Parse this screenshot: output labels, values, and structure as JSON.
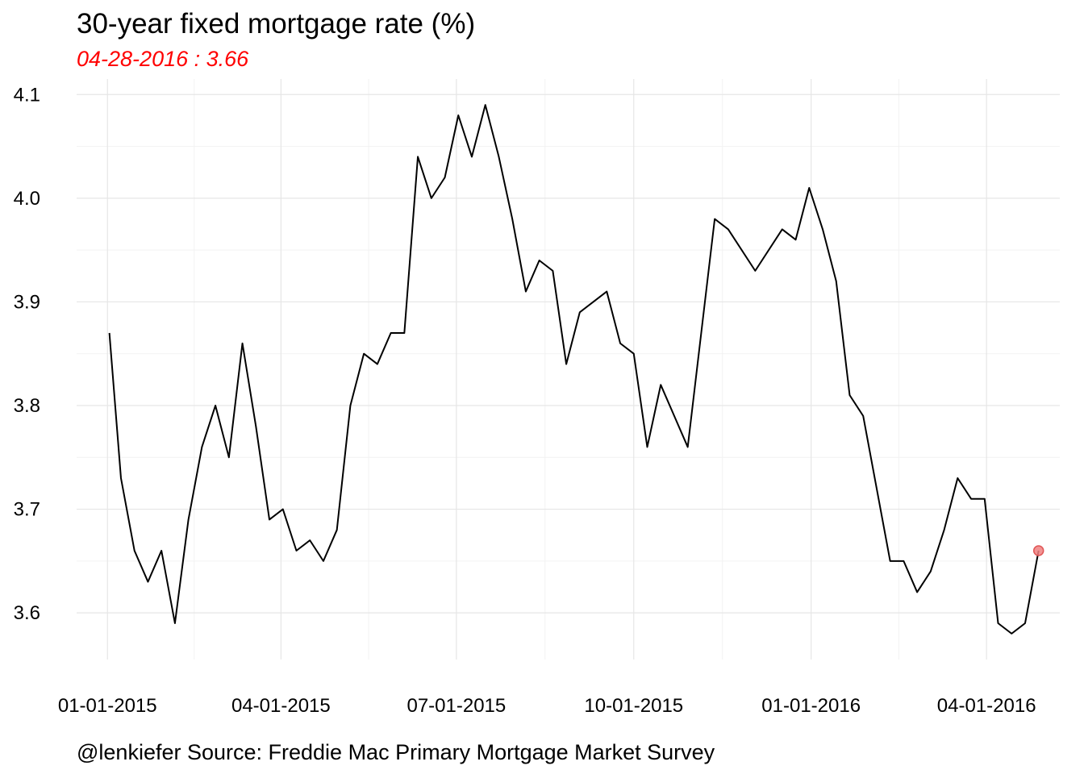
{
  "chart_data": {
    "type": "line",
    "title": "30-year fixed mortgage rate (%)",
    "subtitle": "04-28-2016 : 3.66",
    "caption": "@lenkiefer Source: Freddie Mac Primary Mortgage Market Survey",
    "xlabel": "",
    "ylabel": "",
    "x_ticks": [
      {
        "date": "2015-01-01",
        "label": "01-01-2015"
      },
      {
        "date": "2015-04-01",
        "label": "04-01-2015"
      },
      {
        "date": "2015-07-01",
        "label": "07-01-2015"
      },
      {
        "date": "2015-10-01",
        "label": "10-01-2015"
      },
      {
        "date": "2016-01-01",
        "label": "01-01-2016"
      },
      {
        "date": "2016-04-01",
        "label": "04-01-2016"
      }
    ],
    "y_ticks": [
      3.6,
      3.7,
      3.8,
      3.9,
      4.0,
      4.1
    ],
    "y_tick_labels": [
      "3.6",
      "3.7",
      "3.8",
      "3.9",
      "4.0",
      "4.1"
    ],
    "ylim": [
      3.555,
      4.115
    ],
    "xlim": [
      "2014-12-16",
      "2016-05-09"
    ],
    "grid": true,
    "series": [
      {
        "color": "#000000",
        "points": [
          [
            "2015-01-02",
            3.87
          ],
          [
            "2015-01-08",
            3.73
          ],
          [
            "2015-01-15",
            3.66
          ],
          [
            "2015-01-22",
            3.63
          ],
          [
            "2015-01-29",
            3.66
          ],
          [
            "2015-02-05",
            3.59
          ],
          [
            "2015-02-12",
            3.69
          ],
          [
            "2015-02-19",
            3.76
          ],
          [
            "2015-02-26",
            3.8
          ],
          [
            "2015-03-05",
            3.75
          ],
          [
            "2015-03-12",
            3.86
          ],
          [
            "2015-03-19",
            3.78
          ],
          [
            "2015-03-26",
            3.69
          ],
          [
            "2015-04-02",
            3.7
          ],
          [
            "2015-04-09",
            3.66
          ],
          [
            "2015-04-16",
            3.67
          ],
          [
            "2015-04-23",
            3.65
          ],
          [
            "2015-04-30",
            3.68
          ],
          [
            "2015-05-07",
            3.8
          ],
          [
            "2015-05-14",
            3.85
          ],
          [
            "2015-05-21",
            3.84
          ],
          [
            "2015-05-28",
            3.87
          ],
          [
            "2015-06-04",
            3.87
          ],
          [
            "2015-06-11",
            4.04
          ],
          [
            "2015-06-18",
            4.0
          ],
          [
            "2015-06-25",
            4.02
          ],
          [
            "2015-07-02",
            4.08
          ],
          [
            "2015-07-09",
            4.04
          ],
          [
            "2015-07-16",
            4.09
          ],
          [
            "2015-07-23",
            4.04
          ],
          [
            "2015-07-30",
            3.98
          ],
          [
            "2015-08-06",
            3.91
          ],
          [
            "2015-08-13",
            3.94
          ],
          [
            "2015-08-20",
            3.93
          ],
          [
            "2015-08-27",
            3.84
          ],
          [
            "2015-09-03",
            3.89
          ],
          [
            "2015-09-10",
            3.9
          ],
          [
            "2015-09-17",
            3.91
          ],
          [
            "2015-09-24",
            3.86
          ],
          [
            "2015-10-01",
            3.85
          ],
          [
            "2015-10-08",
            3.76
          ],
          [
            "2015-10-15",
            3.82
          ],
          [
            "2015-10-22",
            3.79
          ],
          [
            "2015-10-29",
            3.76
          ],
          [
            "2015-11-05",
            3.87
          ],
          [
            "2015-11-12",
            3.98
          ],
          [
            "2015-11-19",
            3.97
          ],
          [
            "2015-12-03",
            3.93
          ],
          [
            "2015-12-17",
            3.97
          ],
          [
            "2015-12-24",
            3.96
          ],
          [
            "2015-12-31",
            4.01
          ],
          [
            "2016-01-07",
            3.97
          ],
          [
            "2016-01-14",
            3.92
          ],
          [
            "2016-01-21",
            3.81
          ],
          [
            "2016-01-28",
            3.79
          ],
          [
            "2016-02-04",
            3.72
          ],
          [
            "2016-02-11",
            3.65
          ],
          [
            "2016-02-18",
            3.65
          ],
          [
            "2016-02-25",
            3.62
          ],
          [
            "2016-03-03",
            3.64
          ],
          [
            "2016-03-10",
            3.68
          ],
          [
            "2016-03-17",
            3.73
          ],
          [
            "2016-03-24",
            3.71
          ],
          [
            "2016-03-31",
            3.71
          ],
          [
            "2016-04-07",
            3.59
          ],
          [
            "2016-04-14",
            3.58
          ],
          [
            "2016-04-21",
            3.59
          ],
          [
            "2016-04-28",
            3.66
          ]
        ]
      }
    ],
    "highlight": {
      "date": "2016-04-28",
      "value": 3.66,
      "color": "#f08080"
    }
  }
}
